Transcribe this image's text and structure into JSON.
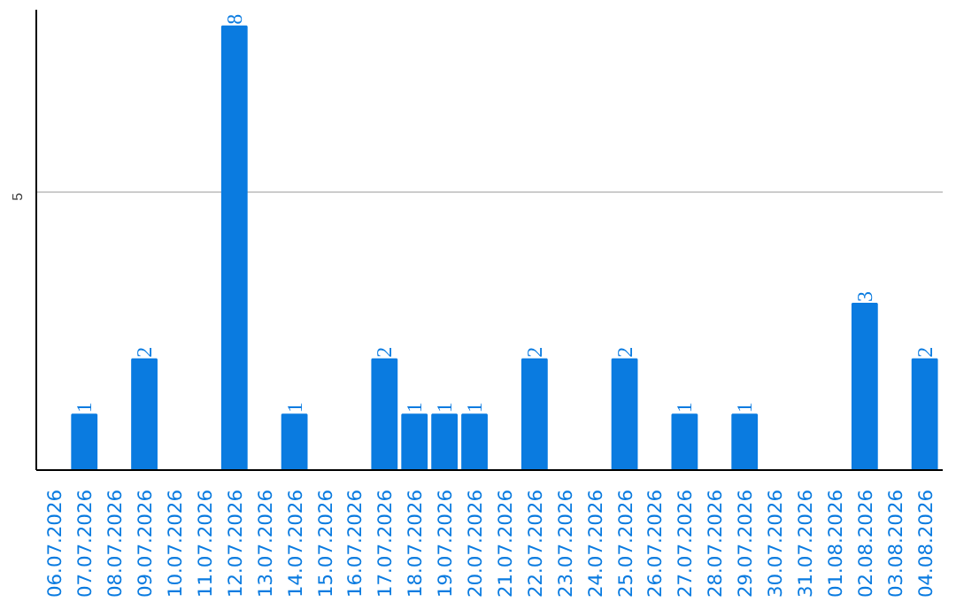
{
  "chart_data": {
    "type": "bar",
    "categories": [
      "06.07.2026",
      "07.07.2026",
      "08.07.2026",
      "09.07.2026",
      "10.07.2026",
      "11.07.2026",
      "12.07.2026",
      "13.07.2026",
      "14.07.2026",
      "15.07.2026",
      "16.07.2026",
      "17.07.2026",
      "18.07.2026",
      "19.07.2026",
      "20.07.2026",
      "21.07.2026",
      "22.07.2026",
      "23.07.2026",
      "24.07.2026",
      "25.07.2026",
      "26.07.2026",
      "27.07.2026",
      "28.07.2026",
      "29.07.2026",
      "30.07.2026",
      "31.07.2026",
      "01.08.2026",
      "02.08.2026",
      "03.08.2026",
      "04.08.2026"
    ],
    "values": [
      0,
      1,
      0,
      2,
      0,
      0,
      8,
      0,
      1,
      0,
      0,
      2,
      1,
      1,
      1,
      0,
      2,
      0,
      0,
      2,
      0,
      1,
      0,
      1,
      0,
      0,
      0,
      3,
      0,
      2
    ],
    "value_labels": [
      null,
      "1",
      null,
      "2",
      null,
      null,
      "8",
      null,
      "1",
      null,
      null,
      "2",
      "1",
      "1",
      "1",
      null,
      "2",
      null,
      null,
      "2",
      null,
      "1",
      null,
      "1",
      null,
      null,
      null,
      "3",
      null,
      "2"
    ],
    "color": "#0a7be0",
    "ylim": [
      0,
      8.3
    ],
    "yticks": [
      5
    ],
    "grid": "y"
  }
}
